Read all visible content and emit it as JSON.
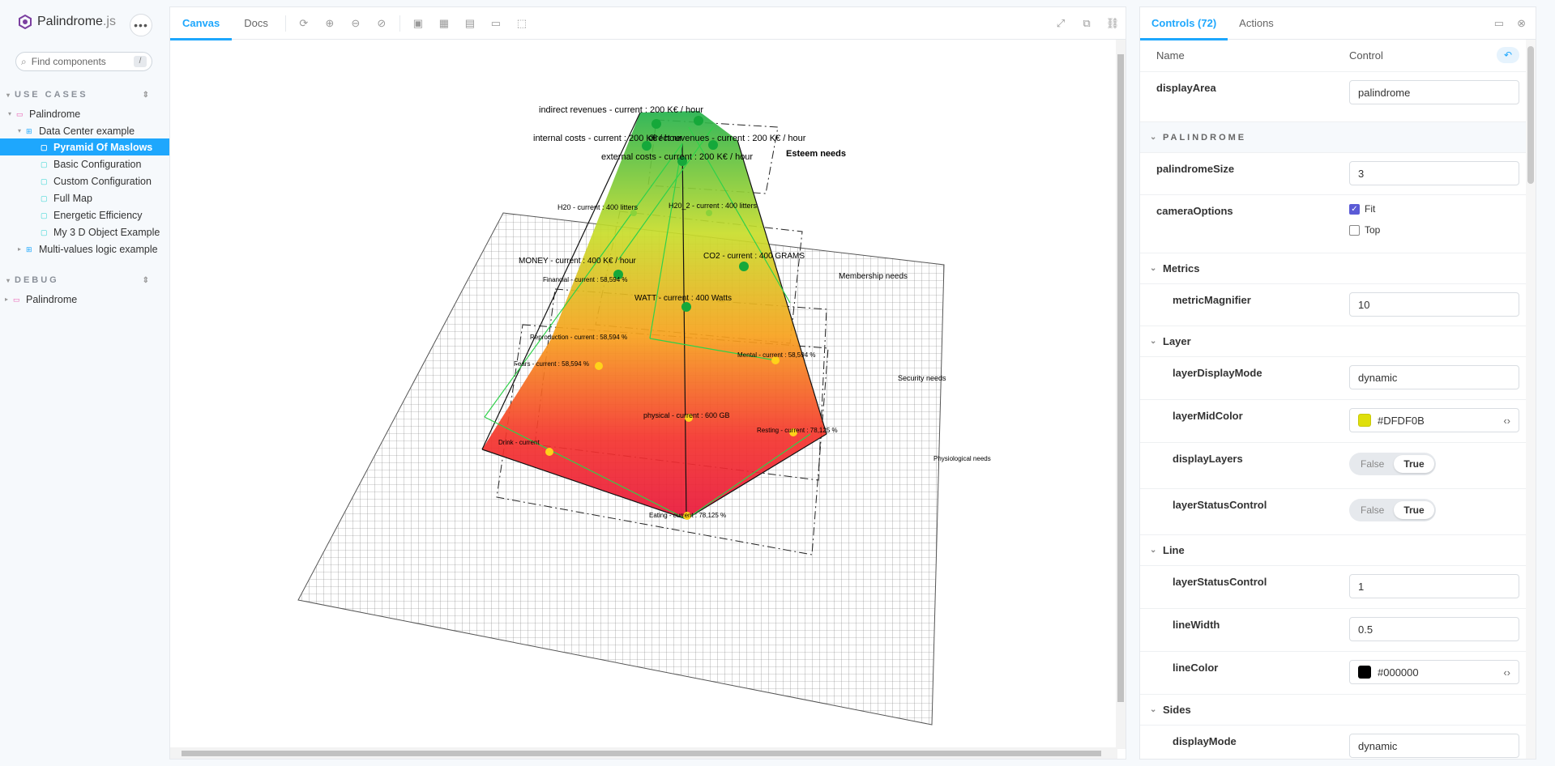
{
  "app": {
    "name": "Palindrome",
    "suffix": ".js",
    "more": "•••"
  },
  "search": {
    "placeholder": "Find components",
    "shortcut": "/"
  },
  "sidebar": {
    "use_cases_title": "USE CASES",
    "debug_title": "DEBUG",
    "items": [
      {
        "label": "Palindrome"
      },
      {
        "label": "Data Center example"
      },
      {
        "label": "Pyramid Of Maslows"
      },
      {
        "label": "Basic Configuration"
      },
      {
        "label": "Custom Configuration"
      },
      {
        "label": "Full Map"
      },
      {
        "label": "Energetic Efficiency"
      },
      {
        "label": "My 3 D Object Example"
      },
      {
        "label": "Multi-values logic example"
      }
    ],
    "debug_items": [
      {
        "label": "Palindrome"
      }
    ]
  },
  "main": {
    "tabs": [
      "Canvas",
      "Docs"
    ]
  },
  "scene": {
    "labels": {
      "indirect": "indirect revenues - current : 200 K€ / hour",
      "internal": "internal costs - current : 200 K€ / hour",
      "direct": "direct revenues - current : 200 K€ / hour",
      "external": "external costs - current : 200 K€ / hour",
      "esteem": "Esteem needs",
      "h2o1": "H20 - current : 400 litters",
      "h2o2": "H20_2 - current : 400 litters",
      "money": "MONEY - current : 400 K€ / hour",
      "co2": "CO2 - current : 400 GRAMS",
      "financial": "Financial - current : 58,594 %",
      "membership": "Membership needs",
      "watt": "WATT - current : 400 Watts",
      "reproduction": "Reproduction - current : 58,594 %",
      "mental": "Mental - current : 58,594 %",
      "fears": "Fears - current : 58,594 %",
      "security": "Security needs",
      "physical": "physical - current : 600 GB",
      "drink": "Drink - current",
      "resting": "Resting - current : 78,125 %",
      "physiological": "Physiological needs",
      "eating": "Eating - current : 78,125 %"
    }
  },
  "panel": {
    "tabs": [
      "Controls (72)",
      "Actions"
    ],
    "header": {
      "name": "Name",
      "control": "Control"
    },
    "rows": {
      "displayArea": {
        "name": "displayArea",
        "value": "palindrome"
      },
      "palindrome_group": "PALINDROME",
      "palindromeSize": {
        "name": "palindromeSize",
        "value": "3"
      },
      "cameraOptions": {
        "name": "cameraOptions",
        "opt1": "Fit",
        "opt2": "Top"
      },
      "metrics_group": "Metrics",
      "metricMagnifier": {
        "name": "metricMagnifier",
        "value": "10"
      },
      "layer_group": "Layer",
      "layerDisplayMode": {
        "name": "layerDisplayMode",
        "value": "dynamic"
      },
      "layerMidColor": {
        "name": "layerMidColor",
        "value": "#DFDF0B"
      },
      "displayLayers": {
        "name": "displayLayers",
        "off": "False",
        "on": "True"
      },
      "layerStatusControl": {
        "name": "layerStatusControl",
        "off": "False",
        "on": "True"
      },
      "line_group": "Line",
      "lineStatusControl": {
        "name": "layerStatusControl",
        "value": "1"
      },
      "lineWidth": {
        "name": "lineWidth",
        "value": "0.5"
      },
      "lineColor": {
        "name": "lineColor",
        "value": "#000000"
      },
      "sides_group": "Sides",
      "displayMode": {
        "name": "displayMode",
        "value": "dynamic"
      }
    }
  },
  "colors": {
    "accent": "#1ea7fd",
    "layerMid": "#DFDF0B",
    "line": "#000000"
  }
}
